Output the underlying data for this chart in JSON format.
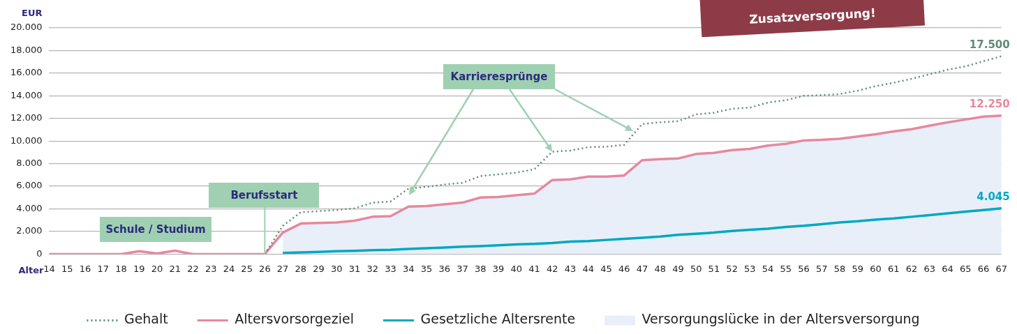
{
  "chart_data": {
    "type": "line",
    "ylabel": "EUR",
    "xlabel": "Alter",
    "categories": [
      "14",
      "15",
      "16",
      "17",
      "18",
      "19",
      "20",
      "21",
      "22",
      "23",
      "24",
      "25",
      "26",
      "27",
      "28",
      "29",
      "30",
      "31",
      "32",
      "33",
      "34",
      "35",
      "36",
      "37",
      "38",
      "39",
      "40",
      "41",
      "42",
      "43",
      "44",
      "45",
      "46",
      "47",
      "48",
      "49",
      "50",
      "51",
      "52",
      "53",
      "54",
      "55",
      "56",
      "57",
      "58",
      "59",
      "60",
      "61",
      "62",
      "63",
      "64",
      "65",
      "66",
      "67"
    ],
    "ylim": [
      0,
      20000
    ],
    "yticks": [
      {
        "value": 0,
        "label": "0"
      },
      {
        "value": 2000,
        "label": "2.000"
      },
      {
        "value": 4000,
        "label": "4.000"
      },
      {
        "value": 6000,
        "label": "6.000"
      },
      {
        "value": 8000,
        "label": "8.000"
      },
      {
        "value": 10000,
        "label": "10.000"
      },
      {
        "value": 12000,
        "label": "12.000"
      },
      {
        "value": 14000,
        "label": "14.000"
      },
      {
        "value": 16000,
        "label": "16.000"
      },
      {
        "value": 18000,
        "label": "18.000"
      },
      {
        "value": 20000,
        "label": "20.000"
      }
    ],
    "grid": "y",
    "legend": "bottom",
    "marker": "none",
    "series": [
      {
        "name": "Gehalt",
        "color": "#5e8a78",
        "line_style": "dotted",
        "values": [
          null,
          null,
          null,
          null,
          null,
          null,
          null,
          null,
          null,
          null,
          null,
          null,
          0,
          2500,
          3700,
          3800,
          3900,
          4050,
          4550,
          4650,
          5800,
          5950,
          6150,
          6300,
          6900,
          7050,
          7200,
          7500,
          9050,
          9150,
          9450,
          9500,
          9650,
          11500,
          11650,
          11750,
          12350,
          12500,
          12850,
          12950,
          13400,
          13600,
          14000,
          14050,
          14150,
          14450,
          14850,
          15150,
          15500,
          15900,
          16300,
          16600,
          17050,
          17500
        ],
        "value_labels": [
          null,
          null,
          null,
          null,
          null,
          null,
          null,
          null,
          null,
          null,
          null,
          null,
          null,
          null,
          null,
          null,
          null,
          null,
          null,
          null,
          null,
          null,
          null,
          null,
          null,
          null,
          null,
          null,
          null,
          null,
          null,
          null,
          null,
          null,
          null,
          null,
          null,
          null,
          null,
          null,
          null,
          null,
          null,
          null,
          null,
          null,
          null,
          null,
          null,
          null,
          null,
          null,
          null,
          "17.500"
        ]
      },
      {
        "name": "Altersvorsorgeziel",
        "color": "#e5899f",
        "line_style": "solid",
        "values": [
          0,
          0,
          0,
          0,
          0,
          250,
          50,
          300,
          0,
          0,
          0,
          0,
          0,
          1900,
          2700,
          2750,
          2800,
          2950,
          3300,
          3350,
          4200,
          4250,
          4400,
          4550,
          5000,
          5050,
          5200,
          5350,
          6550,
          6600,
          6850,
          6850,
          6950,
          8300,
          8400,
          8450,
          8850,
          8950,
          9200,
          9300,
          9600,
          9750,
          10050,
          10100,
          10200,
          10400,
          10600,
          10850,
          11050,
          11350,
          11650,
          11900,
          12150,
          12250
        ],
        "value_labels": [
          null,
          null,
          null,
          null,
          null,
          null,
          null,
          null,
          null,
          null,
          null,
          null,
          null,
          null,
          null,
          null,
          null,
          null,
          null,
          null,
          null,
          null,
          null,
          null,
          null,
          null,
          null,
          null,
          null,
          null,
          null,
          null,
          null,
          null,
          null,
          null,
          null,
          null,
          null,
          null,
          null,
          null,
          null,
          null,
          null,
          null,
          null,
          null,
          null,
          null,
          null,
          null,
          null,
          "12.250"
        ]
      },
      {
        "name": "Gesetzliche Altersrente",
        "color": "#00a8c2",
        "line_style": "solid",
        "values": [
          null,
          null,
          null,
          null,
          null,
          null,
          null,
          null,
          null,
          null,
          null,
          null,
          null,
          100,
          150,
          200,
          250,
          290,
          350,
          380,
          450,
          520,
          580,
          650,
          700,
          780,
          850,
          900,
          980,
          1100,
          1150,
          1250,
          1350,
          1450,
          1550,
          1700,
          1800,
          1900,
          2050,
          2150,
          2250,
          2400,
          2500,
          2650,
          2800,
          2900,
          3050,
          3150,
          3300,
          3450,
          3600,
          3750,
          3900,
          4045
        ],
        "value_labels": [
          null,
          null,
          null,
          null,
          null,
          null,
          null,
          null,
          null,
          null,
          null,
          null,
          null,
          null,
          null,
          null,
          null,
          null,
          null,
          null,
          null,
          null,
          null,
          null,
          null,
          null,
          null,
          null,
          null,
          null,
          null,
          null,
          null,
          null,
          null,
          null,
          null,
          null,
          null,
          null,
          null,
          null,
          null,
          null,
          null,
          null,
          null,
          null,
          null,
          null,
          null,
          null,
          null,
          "4.045"
        ]
      },
      {
        "name": "Versorgungslücke in der Altersversorgung",
        "type": "area",
        "color": "#e8eff9",
        "values": [
          null,
          null,
          null,
          null,
          null,
          null,
          null,
          null,
          null,
          null,
          null,
          null,
          null,
          1900,
          2700,
          2750,
          2800,
          2950,
          3300,
          3350,
          4200,
          4250,
          4400,
          4550,
          5000,
          5050,
          5200,
          5350,
          6550,
          6600,
          6850,
          6850,
          6950,
          8300,
          8400,
          8450,
          8850,
          8950,
          9200,
          9300,
          9600,
          9750,
          10050,
          10100,
          10200,
          10400,
          10600,
          10850,
          11050,
          11350,
          11650,
          11900,
          12150,
          12250
        ]
      }
    ],
    "ref_lines": [
      {
        "axis": "x",
        "value": "26",
        "label": "Berufsstart",
        "color": "#9fd0b2"
      }
    ],
    "annotations": [
      "Schule / Studium",
      {
        "text": "Karrieresprünge",
        "x": "42",
        "y": 9050
      },
      "Zusatzversorgung!"
    ]
  }
}
